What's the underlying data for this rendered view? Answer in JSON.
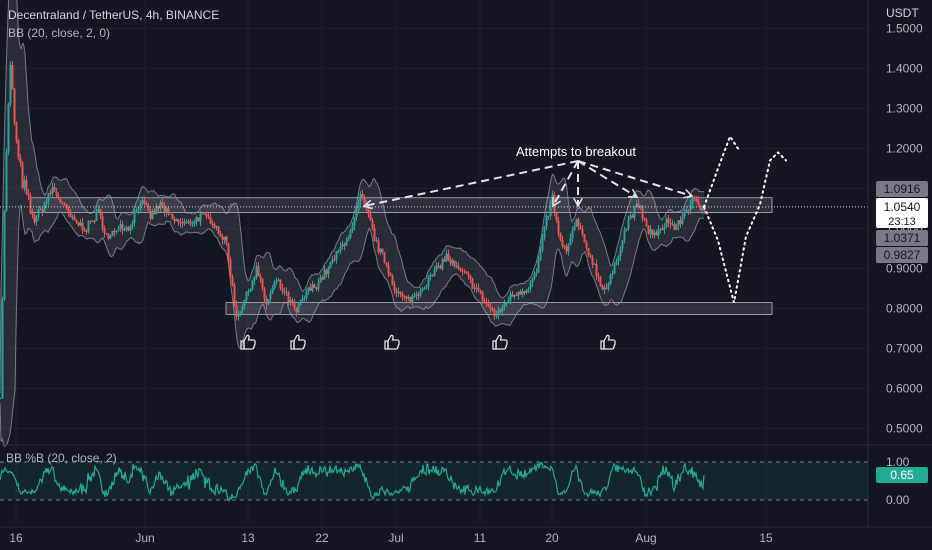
{
  "header": {
    "symbol_line": "Decentraland / TetherUS, 4h, BINANCE",
    "indicator_line": "BB (20, close, 2, 0)",
    "sub_indicator_line": "BB %B (20, close, 2)",
    "currency": "USDT"
  },
  "price_axis": {
    "ticks": [
      "1.5000",
      "1.4000",
      "1.3000",
      "1.2000",
      "1.1000",
      "1.0000",
      "0.9000",
      "0.8000",
      "0.7000",
      "0.6000",
      "0.5000"
    ],
    "tick_values": [
      1.5,
      1.4,
      1.3,
      1.2,
      1.1,
      1.0,
      0.9,
      0.8,
      0.7,
      0.6,
      0.5
    ]
  },
  "price_tags": {
    "upper_band": "1.0916",
    "last_price": "1.0540",
    "countdown": "23:13",
    "basis": "1.0371",
    "lower_band": "0.9827"
  },
  "sub_axis": {
    "ticks": [
      "1.00",
      "0.00"
    ],
    "value_tag": "0.65"
  },
  "time_axis": {
    "labels": [
      "16",
      "Jun",
      "13",
      "22",
      "Jul",
      "11",
      "20",
      "Aug",
      "15"
    ]
  },
  "annotation": {
    "text": "Attempts to breakout"
  },
  "colors": {
    "background": "#131722",
    "up": "#26a69a",
    "down": "#ef5350",
    "band": "#787b86",
    "oscillator": "#22ab94",
    "text": "#d1d4dc"
  },
  "icons": [
    "thumbs-up-icon",
    "thumbs-up-icon",
    "thumbs-up-icon",
    "thumbs-up-icon",
    "thumbs-up-icon"
  ],
  "chart_data": [
    {
      "type": "candlestick",
      "title": "Decentraland / TetherUS, 4h, BINANCE",
      "ylabel": "USDT",
      "ylim": [
        0.46,
        1.54
      ],
      "last_price": 1.054,
      "bollinger": {
        "upper": 1.0916,
        "basis": 1.0371,
        "lower": 0.9827
      },
      "price_path": [
        [
          0,
          0.6
        ],
        [
          3,
          0.95
        ],
        [
          6,
          1.2
        ],
        [
          10,
          1.4
        ],
        [
          13,
          1.3
        ],
        [
          17,
          1.18
        ],
        [
          22,
          1.12
        ],
        [
          27,
          1.07
        ],
        [
          33,
          1.02
        ],
        [
          42,
          1.05
        ],
        [
          52,
          1.1
        ],
        [
          62,
          1.06
        ],
        [
          72,
          1.02
        ],
        [
          86,
          1.0
        ],
        [
          98,
          1.04
        ],
        [
          108,
          0.97
        ],
        [
          118,
          1.01
        ],
        [
          128,
          1.0
        ],
        [
          140,
          1.07
        ],
        [
          150,
          1.03
        ],
        [
          160,
          1.06
        ],
        [
          172,
          1.02
        ],
        [
          186,
          1.01
        ],
        [
          200,
          1.03
        ],
        [
          212,
          1.02
        ],
        [
          226,
          0.96
        ],
        [
          236,
          0.78
        ],
        [
          246,
          0.83
        ],
        [
          256,
          0.9
        ],
        [
          266,
          0.81
        ],
        [
          276,
          0.87
        ],
        [
          286,
          0.83
        ],
        [
          296,
          0.79
        ],
        [
          306,
          0.84
        ],
        [
          316,
          0.86
        ],
        [
          328,
          0.9
        ],
        [
          340,
          0.95
        ],
        [
          352,
          1.0
        ],
        [
          360,
          1.08
        ],
        [
          368,
          1.03
        ],
        [
          376,
          0.96
        ],
        [
          386,
          0.91
        ],
        [
          396,
          0.84
        ],
        [
          406,
          0.82
        ],
        [
          414,
          0.83
        ],
        [
          424,
          0.86
        ],
        [
          434,
          0.89
        ],
        [
          446,
          0.93
        ],
        [
          456,
          0.9
        ],
        [
          466,
          0.88
        ],
        [
          476,
          0.85
        ],
        [
          486,
          0.81
        ],
        [
          496,
          0.78
        ],
        [
          506,
          0.82
        ],
        [
          516,
          0.84
        ],
        [
          526,
          0.85
        ],
        [
          536,
          0.89
        ],
        [
          546,
          1.02
        ],
        [
          552,
          1.08
        ],
        [
          558,
          0.98
        ],
        [
          566,
          0.94
        ],
        [
          576,
          1.02
        ],
        [
          584,
          0.96
        ],
        [
          592,
          0.92
        ],
        [
          600,
          0.86
        ],
        [
          606,
          0.85
        ],
        [
          614,
          0.9
        ],
        [
          622,
          0.98
        ],
        [
          630,
          1.03
        ],
        [
          638,
          1.06
        ],
        [
          646,
          1.0
        ],
        [
          656,
          0.98
        ],
        [
          666,
          1.02
        ],
        [
          676,
          1.0
        ],
        [
          684,
          1.04
        ],
        [
          692,
          1.07
        ],
        [
          700,
          1.05
        ],
        [
          704,
          1.054
        ]
      ],
      "zones": [
        {
          "name": "resistance",
          "low": 1.04,
          "high": 1.077
        },
        {
          "name": "support",
          "low": 0.785,
          "high": 0.815
        }
      ],
      "projection": [
        [
          704,
          1.054
        ],
        [
          718,
          1.15
        ],
        [
          730,
          1.23
        ],
        [
          738,
          1.2
        ]
      ],
      "projection_alt": [
        [
          704,
          1.054
        ],
        [
          718,
          0.97
        ],
        [
          734,
          0.815
        ],
        [
          746,
          0.98
        ],
        [
          760,
          1.06
        ],
        [
          770,
          1.17
        ],
        [
          778,
          1.19
        ],
        [
          786,
          1.17
        ]
      ]
    },
    {
      "type": "line",
      "title": "BB %B (20, close, 2)",
      "ylim": [
        -0.22,
        1.2
      ],
      "reference_levels": [
        1.0,
        0.0
      ],
      "last_value": 0.65
    }
  ]
}
